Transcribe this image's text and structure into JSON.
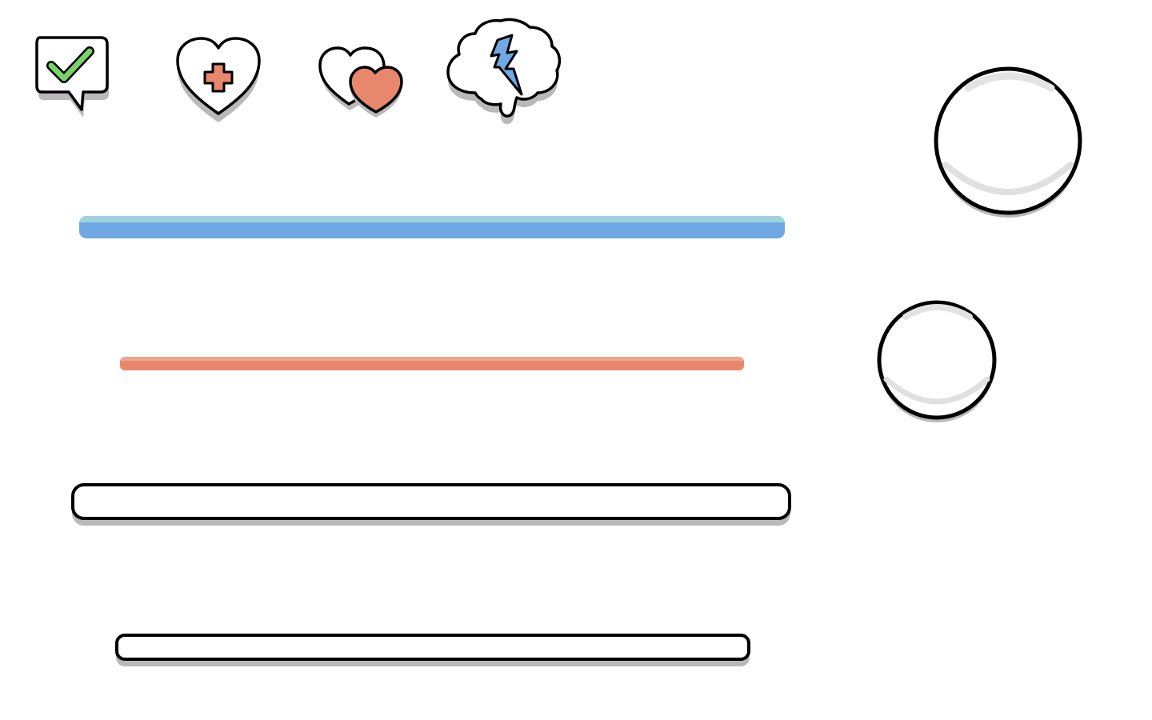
{
  "icons": {
    "check": "chat-check-icon",
    "health": "heart-plus-icon",
    "hearts": "two-hearts-icon",
    "brain": "brain-lightning-icon"
  },
  "colors": {
    "outline": "#000000",
    "shadow": "#b9b9b9",
    "check_green": "#7ad36a",
    "heart_red": "#e7876c",
    "bolt_blue": "#6fa8e2",
    "bar_blue": "#6fa8e2",
    "bar_blue_highlight": "#9fd4df",
    "bar_red": "#e7876c",
    "bar_red_highlight": "#f0a48b",
    "white": "#ffffff"
  },
  "bars": {
    "blue_fill": 1.0,
    "red_fill": 1.0
  }
}
